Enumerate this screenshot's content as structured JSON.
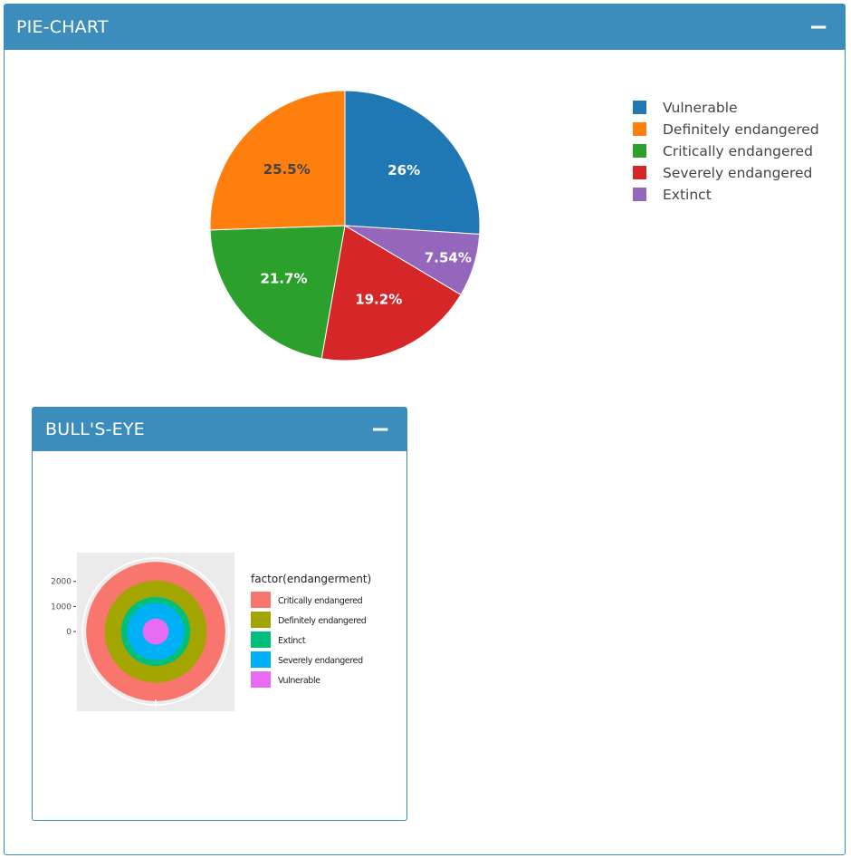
{
  "pie_box": {
    "title": "PIE-CHART",
    "collapse_label": "−"
  },
  "bull_box": {
    "title": "BULL'S-EYE",
    "collapse_label": "−"
  },
  "chart_data": [
    {
      "type": "pie",
      "slices": [
        {
          "label": "Vulnerable",
          "value": 26,
          "text": "26%",
          "color": "#1f77b4",
          "label_color": "#ffffff"
        },
        {
          "label": "Definitely endangered",
          "value": 25.5,
          "text": "25.5%",
          "color": "#ff7f0e",
          "label_color": "#444444"
        },
        {
          "label": "Critically endangered",
          "value": 21.7,
          "text": "21.7%",
          "color": "#2ca02c",
          "label_color": "#ffffff"
        },
        {
          "label": "Severely endangered",
          "value": 19.2,
          "text": "19.2%",
          "color": "#d62728",
          "label_color": "#ffffff"
        },
        {
          "label": "Extinct",
          "value": 7.54,
          "text": "7.54%",
          "color": "#9467bd",
          "label_color": "#ffffff"
        }
      ],
      "pie_order": [
        "Vulnerable",
        "Extinct",
        "Severely endangered",
        "Critically endangered",
        "Definitely endangered"
      ],
      "legend_order": [
        "Vulnerable",
        "Definitely endangered",
        "Critically endangered",
        "Severely endangered",
        "Extinct"
      ],
      "legend_position": "top-right"
    },
    {
      "type": "bullseye",
      "legend_title": "factor(endangerment)",
      "categories": [
        {
          "label": "Critically endangered",
          "color": "#f8766d"
        },
        {
          "label": "Definitely endangered",
          "color": "#a3a500"
        },
        {
          "label": "Extinct",
          "color": "#00bf7d"
        },
        {
          "label": "Severely endangered",
          "color": "#00b0f6"
        },
        {
          "label": "Vulnerable",
          "color": "#e76bf3"
        }
      ],
      "y_ticks": [
        {
          "value": 0,
          "label": "0"
        },
        {
          "value": 1000,
          "label": "1000"
        },
        {
          "value": 2000,
          "label": "2000"
        }
      ],
      "ring_outer_values": [
        2780,
        2040,
        1380,
        1140,
        520
      ],
      "ymax": 2930,
      "legend_position": "right",
      "panel_background": "#ebebeb"
    }
  ]
}
